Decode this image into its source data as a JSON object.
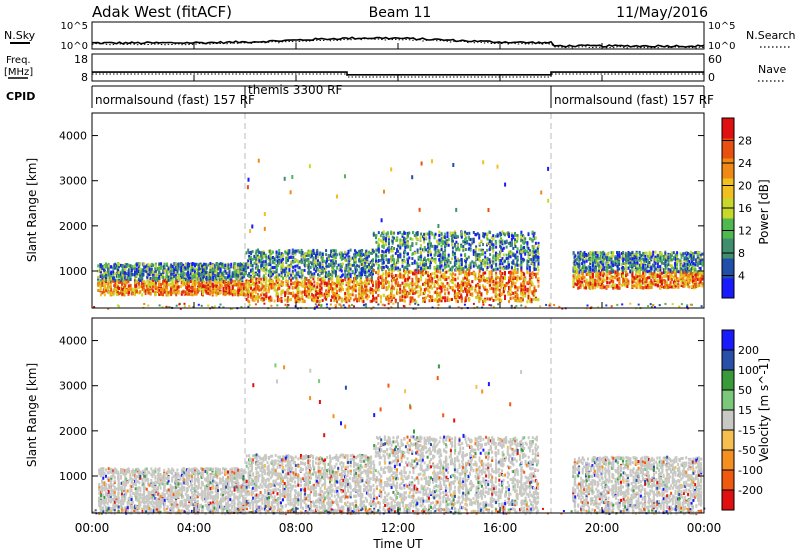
{
  "header": {
    "title": "Adak West (fitACF)",
    "beam": "Beam 11",
    "date": "11/May/2016"
  },
  "summary": {
    "nsky_label": "N.Sky",
    "nsky_ticks": [
      "10^5",
      "10^0"
    ],
    "nsearch_label": "N.Search",
    "nsearch_ticks": [
      "10^5",
      "10^0"
    ],
    "freq_label_1": "Freq.",
    "freq_label_2": "[MHz]",
    "freq_ticks": [
      "18",
      "8"
    ],
    "nave_label": "Nave",
    "nave_ticks": [
      "60",
      "0"
    ],
    "cpid_label": "CPID",
    "cpid_segments": [
      {
        "start_h": 0,
        "end_h": 6,
        "label": "normalsound (fast) 157 RF"
      },
      {
        "start_h": 6,
        "end_h": 18,
        "label": "themis 3300 RF"
      },
      {
        "start_h": 18,
        "end_h": 24,
        "label": "normalsound (fast) 157 RF"
      }
    ],
    "freq_segments": [
      {
        "start_h": 0,
        "end_h": 10,
        "freq_mhz": 11.3
      },
      {
        "start_h": 10,
        "end_h": 18,
        "freq_mhz": 10.3
      },
      {
        "start_h": 18,
        "end_h": 24,
        "freq_mhz": 11.3
      }
    ]
  },
  "chart_data": [
    {
      "type": "heatmap",
      "panel": "power",
      "xlabel": "",
      "ylabel": "Slant Range [km]",
      "xlim": [
        0,
        24
      ],
      "ylim": [
        180,
        4500
      ],
      "yticks": [
        "1000",
        "2000",
        "3000",
        "4000"
      ],
      "colorbar_label": "Power [dB]",
      "colorbar_ticks": [
        "28",
        "24",
        "20",
        "16",
        "12",
        "8",
        "4"
      ],
      "colorbar_range": [
        0,
        30
      ],
      "colors": [
        "#1a1aff",
        "#1f4fa8",
        "#3f8f6f",
        "#4fb84f",
        "#c8d82a",
        "#f0c020",
        "#f08a14",
        "#e85010",
        "#e01010"
      ],
      "scatter_regions": [
        {
          "t0": 0.2,
          "t1": 6.0,
          "r0": 500,
          "r1": 1200
        },
        {
          "t0": 6.0,
          "t1": 11.0,
          "r0": 350,
          "r1": 1500
        },
        {
          "t0": 11.0,
          "t1": 17.5,
          "r0": 350,
          "r1": 1900
        },
        {
          "t0": 18.8,
          "t1": 23.9,
          "r0": 650,
          "r1": 1450
        }
      ]
    },
    {
      "type": "heatmap",
      "panel": "velocity",
      "xlabel": "Time UT",
      "ylabel": "Slant Range [km]",
      "xlim": [
        0,
        24
      ],
      "ylim": [
        180,
        4500
      ],
      "yticks": [
        "1000",
        "2000",
        "3000",
        "4000"
      ],
      "xticks": [
        "00:00",
        "04:00",
        "08:00",
        "12:00",
        "16:00",
        "20:00",
        "00:00"
      ],
      "colorbar_label": "Velocity [m s^-1]",
      "colorbar_ticks": [
        "200",
        "100",
        "50",
        "15",
        "-15",
        "-50",
        "-100",
        "-200"
      ],
      "colorbar_range": [
        -250,
        250
      ],
      "colors": [
        "#e01010",
        "#f05a10",
        "#f59020",
        "#f5c050",
        "#c8c8c4",
        "#7ac87a",
        "#3a9a3a",
        "#2a4fa8",
        "#1a1aff"
      ],
      "scatter_regions": [
        {
          "t0": 0.2,
          "t1": 6.0,
          "r0": 200,
          "r1": 1200
        },
        {
          "t0": 6.0,
          "t1": 11.0,
          "r0": 200,
          "r1": 1500
        },
        {
          "t0": 11.0,
          "t1": 17.5,
          "r0": 200,
          "r1": 1900
        },
        {
          "t0": 18.8,
          "t1": 23.9,
          "r0": 200,
          "r1": 1450
        }
      ]
    }
  ]
}
